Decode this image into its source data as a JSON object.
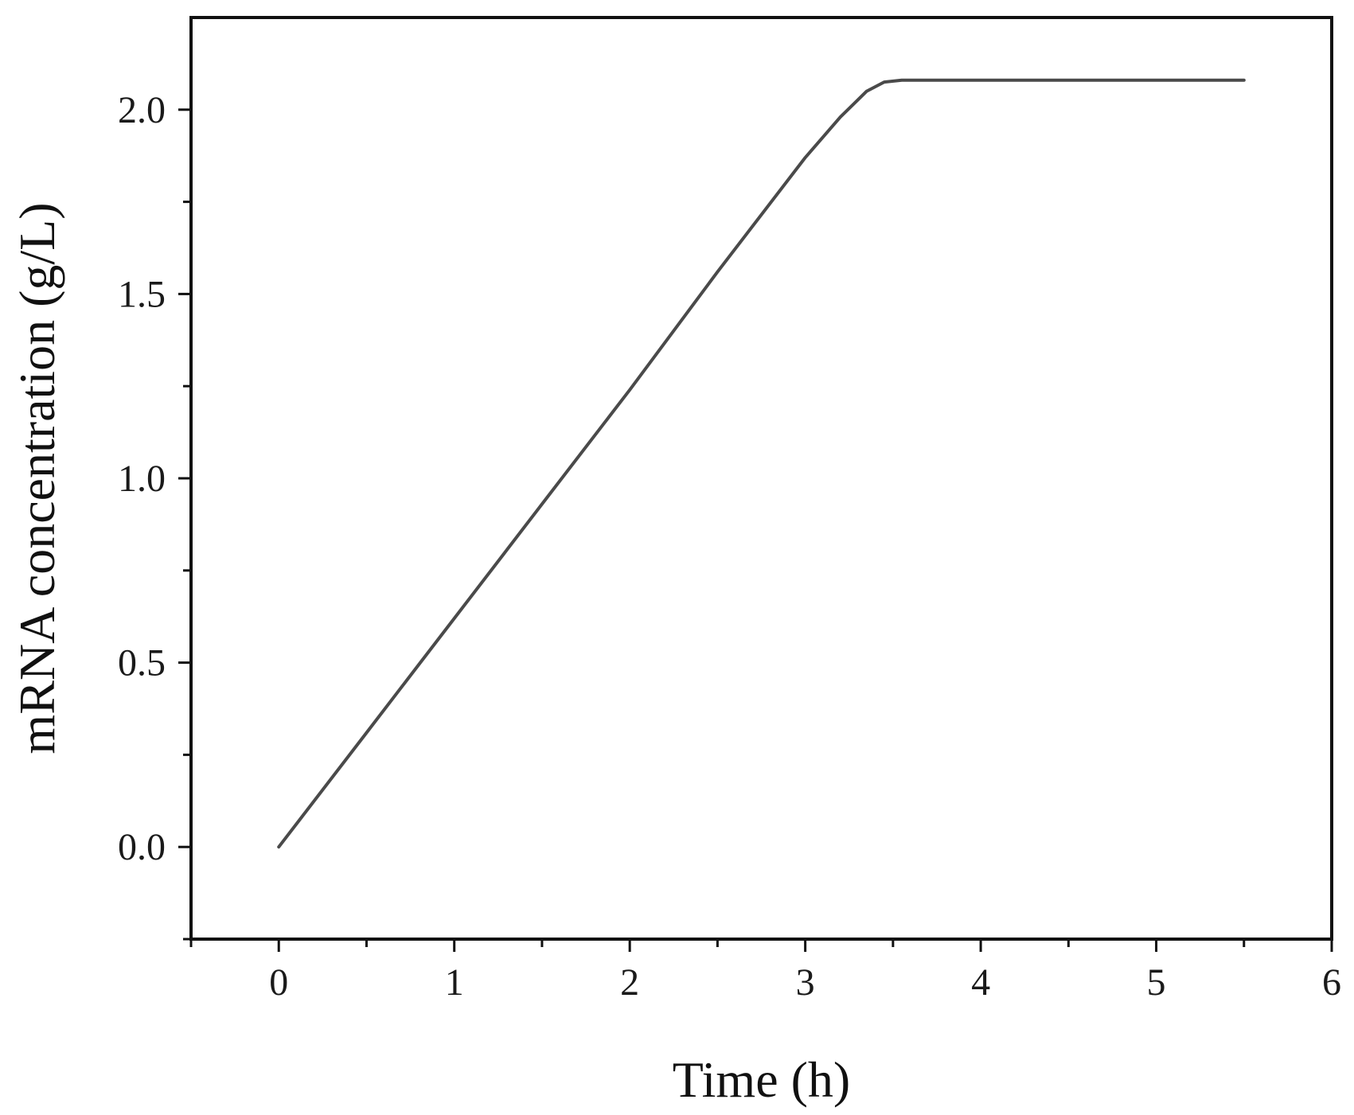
{
  "chart_data": {
    "type": "line",
    "title": "",
    "xlabel": "Time (h)",
    "ylabel": "mRNA concentration (g/L)",
    "xlim": [
      -0.5,
      6
    ],
    "ylim": [
      -0.25,
      2.25
    ],
    "x_ticks": [
      0,
      1,
      2,
      3,
      4,
      5,
      6
    ],
    "x_tick_labels": [
      "0",
      "1",
      "2",
      "3",
      "4",
      "5",
      "6"
    ],
    "x_minor_ticks": [
      -0.5,
      0.5,
      1.5,
      2.5,
      3.5,
      4.5,
      5.5
    ],
    "y_ticks": [
      0.0,
      0.5,
      1.0,
      1.5,
      2.0
    ],
    "y_tick_labels": [
      "0.0",
      "0.5",
      "1.0",
      "1.5",
      "2.0"
    ],
    "y_minor_ticks": [
      -0.25,
      0.25,
      0.75,
      1.25,
      1.75
    ],
    "grid": false,
    "legend": "none",
    "series": [
      {
        "color": "#4a4a4a",
        "x": [
          0,
          0.5,
          1.0,
          1.5,
          2.0,
          2.5,
          3.0,
          3.2,
          3.35,
          3.45,
          3.55,
          4.0,
          4.5,
          5.0,
          5.5
        ],
        "y": [
          0,
          0.31,
          0.62,
          0.93,
          1.24,
          1.56,
          1.87,
          1.98,
          2.05,
          2.075,
          2.08,
          2.08,
          2.08,
          2.08,
          2.08
        ]
      }
    ]
  }
}
